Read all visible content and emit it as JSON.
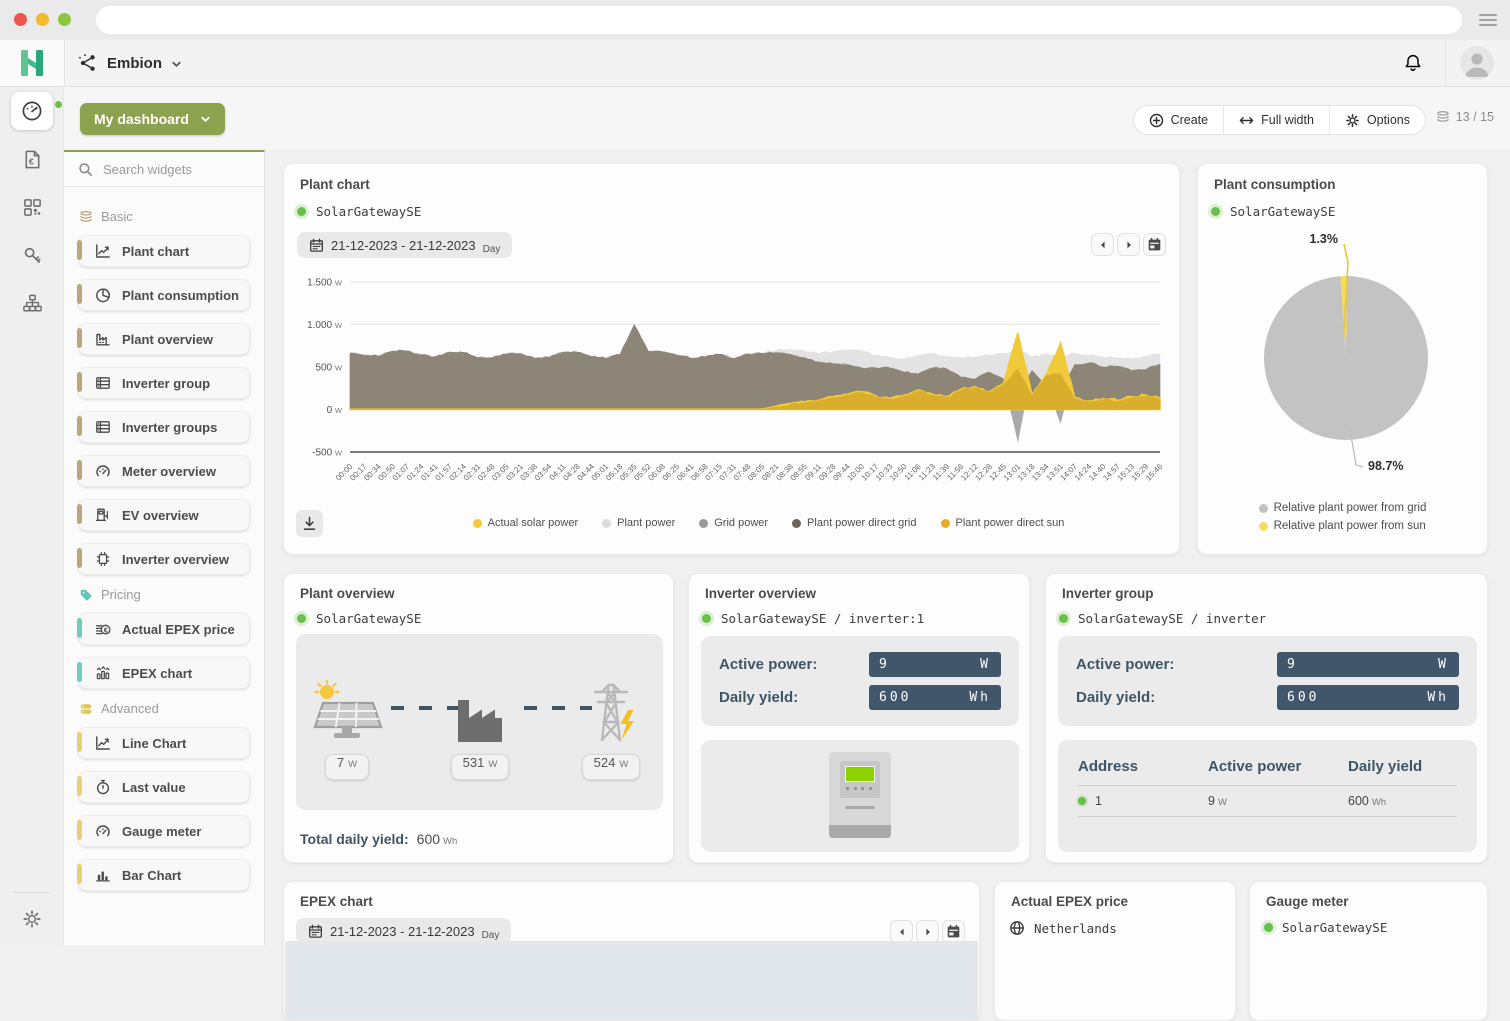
{
  "colors": {
    "accent_green": "#8ca24f",
    "status_green": "#67c04a",
    "slate": "#3e5566",
    "value_box": "#42566b"
  },
  "header": {
    "logo_letter": "H",
    "org_name": "Embion"
  },
  "nav_rail": {
    "items": [
      {
        "name": "dashboard",
        "icon": "speedometer",
        "active": true
      },
      {
        "name": "billing",
        "icon": "invoice",
        "active": false
      },
      {
        "name": "widgets",
        "icon": "apps-grid",
        "active": false
      },
      {
        "name": "access-keys",
        "icon": "key",
        "active": false
      },
      {
        "name": "organization",
        "icon": "sitemap",
        "active": false
      }
    ],
    "bottom": {
      "name": "settings",
      "icon": "gear"
    }
  },
  "toolbar": {
    "dashboard_button": "My dashboard",
    "create": "Create",
    "full_width": "Full width",
    "options": "Options",
    "counter": "13 / 15"
  },
  "sidebar": {
    "search_placeholder": "Search widgets",
    "sections": [
      {
        "label": "Basic",
        "icon": "layers",
        "accent": "#b9a77e",
        "icon_color": "#b9a77e",
        "items": [
          {
            "label": "Plant chart",
            "icon": "line-chart"
          },
          {
            "label": "Plant consumption",
            "icon": "pie-chart"
          },
          {
            "label": "Plant overview",
            "icon": "factory"
          },
          {
            "label": "Inverter group",
            "icon": "table-list"
          },
          {
            "label": "Inverter groups",
            "icon": "table-list"
          },
          {
            "label": "Meter overview",
            "icon": "gauge"
          },
          {
            "label": "EV overview",
            "icon": "ev-charger"
          },
          {
            "label": "Inverter overview",
            "icon": "chip"
          }
        ]
      },
      {
        "label": "Pricing",
        "icon": "tag",
        "accent": "#6fcdbd",
        "icon_color": "#5fc9b6",
        "items": [
          {
            "label": "Actual EPEX price",
            "icon": "coins"
          },
          {
            "label": "EPEX chart",
            "icon": "epex-bars"
          }
        ]
      },
      {
        "label": "Advanced",
        "icon": "database",
        "accent": "#e8d175",
        "icon_color": "#e0c554",
        "items": [
          {
            "label": "Line Chart",
            "icon": "line-chart"
          },
          {
            "label": "Last value",
            "icon": "stopwatch"
          },
          {
            "label": "Gauge meter",
            "icon": "gauge"
          },
          {
            "label": "Bar Chart",
            "icon": "bar-chart"
          }
        ]
      }
    ]
  },
  "widgets": {
    "plant_chart": {
      "title": "Plant chart",
      "device": "SolarGatewaySE",
      "date_range": "21-12-2023 - 21-12-2023",
      "date_granularity": "Day",
      "legend": [
        {
          "label": "Actual solar power",
          "color": "#f0ca39"
        },
        {
          "label": "Plant power",
          "color": "#dcdcdc"
        },
        {
          "label": "Grid power",
          "color": "#9a9a9a"
        },
        {
          "label": "Plant power direct grid",
          "color": "#6c6452"
        },
        {
          "label": "Plant power direct sun",
          "color": "#e5ad25"
        }
      ]
    },
    "plant_consumption": {
      "title": "Plant consumption",
      "device": "SolarGatewaySE",
      "slice_labels": {
        "sun": "1.3%",
        "grid": "98.7%"
      },
      "legend": [
        {
          "label": "Relative plant power from grid",
          "color": "#c3c3c3"
        },
        {
          "label": "Relative plant power from sun",
          "color": "#f4dd5b"
        }
      ]
    },
    "plant_overview": {
      "title": "Plant overview",
      "device": "SolarGatewaySE",
      "nodes": [
        {
          "icon": "solar-panel",
          "value": "7",
          "unit": "W"
        },
        {
          "icon": "factory-building",
          "value": "531",
          "unit": "W"
        },
        {
          "icon": "power-tower",
          "value": "524",
          "unit": "W"
        }
      ],
      "total_label": "Total daily yield:",
      "total_value": "600",
      "total_unit": "Wh"
    },
    "inverter_overview": {
      "title": "Inverter overview",
      "device": "SolarGatewaySE / inverter:1",
      "rows": [
        {
          "label": "Active power:",
          "value": "9",
          "unit": "W"
        },
        {
          "label": "Daily yield:",
          "value": "600",
          "unit": "Wh"
        }
      ]
    },
    "inverter_group": {
      "title": "Inverter group",
      "device": "SolarGatewaySE / inverter",
      "rows": [
        {
          "label": "Active power:",
          "value": "9",
          "unit": "W"
        },
        {
          "label": "Daily yield:",
          "value": "600",
          "unit": "Wh"
        }
      ],
      "table": {
        "headers": [
          "Address",
          "Active power",
          "Daily yield"
        ],
        "rows": [
          {
            "address": "1",
            "active_power": "9",
            "active_power_unit": "W",
            "daily_yield": "600",
            "daily_yield_unit": "Wh"
          }
        ]
      }
    },
    "epex_chart": {
      "title": "EPEX chart",
      "date_range": "21-12-2023 - 21-12-2023",
      "date_granularity": "Day"
    },
    "actual_epex_price": {
      "title": "Actual EPEX price",
      "region": "Netherlands"
    },
    "gauge_meter": {
      "title": "Gauge meter",
      "device": "SolarGatewaySE"
    }
  },
  "chart_data": [
    {
      "type": "area",
      "title": "Plant chart",
      "ylabel": "W",
      "unit": "W",
      "ylim": [
        -500,
        1500
      ],
      "grid": true,
      "legend_position": "bottom",
      "yticks": [
        {
          "label": "1.500",
          "value": 1500
        },
        {
          "label": "1.000",
          "value": 1000
        },
        {
          "label": "500",
          "value": 500
        },
        {
          "label": "0",
          "value": 0
        },
        {
          "label": "-500",
          "value": -500
        }
      ],
      "x": [
        "00:00",
        "00:17",
        "00:34",
        "00:50",
        "01:07",
        "01:24",
        "01:41",
        "01:57",
        "02:14",
        "02:31",
        "02:48",
        "03:05",
        "03:21",
        "03:38",
        "03:54",
        "04:11",
        "04:28",
        "04:44",
        "05:01",
        "05:18",
        "05:35",
        "05:52",
        "06:08",
        "06:25",
        "06:41",
        "06:58",
        "07:15",
        "07:31",
        "07:48",
        "08:05",
        "08:21",
        "08:38",
        "08:55",
        "09:11",
        "09:28",
        "09:44",
        "10:00",
        "10:17",
        "10:33",
        "10:50",
        "11:06",
        "11:23",
        "11:39",
        "11:56",
        "12:12",
        "12:28",
        "12:45",
        "13:01",
        "13:18",
        "13:34",
        "13:51",
        "14:07",
        "14:24",
        "14:40",
        "14:57",
        "15:13",
        "15:29",
        "15:46"
      ],
      "series": [
        {
          "name": "Plant power",
          "color": "#e3e3e3",
          "values": [
            665,
            640,
            630,
            688,
            690,
            645,
            622,
            676,
            672,
            612,
            610,
            652,
            660,
            604,
            614,
            674,
            676,
            622,
            604,
            650,
            1000,
            686,
            680,
            640,
            604,
            620,
            650,
            600,
            655,
            660,
            700,
            710,
            690,
            660,
            680,
            700,
            690,
            640,
            610,
            600,
            640,
            660,
            620,
            610,
            620,
            640,
            660,
            700,
            620,
            660,
            620,
            660,
            640,
            620,
            610,
            600,
            630,
            655
          ]
        },
        {
          "name": "Grid power",
          "color": "#a9a9a9",
          "values": [
            665,
            640,
            630,
            688,
            690,
            645,
            622,
            676,
            672,
            612,
            610,
            652,
            660,
            604,
            614,
            674,
            676,
            622,
            604,
            650,
            1000,
            686,
            680,
            640,
            604,
            620,
            650,
            600,
            655,
            660,
            670,
            650,
            610,
            560,
            540,
            530,
            490,
            490,
            490,
            440,
            420,
            490,
            480,
            380,
            360,
            440,
            360,
            -380,
            460,
            260,
            -160,
            530,
            550,
            500,
            510,
            460,
            470,
            535
          ]
        },
        {
          "name": "Plant power direct grid",
          "color": "#8d8577",
          "values": [
            665,
            640,
            630,
            688,
            690,
            645,
            622,
            676,
            672,
            612,
            610,
            652,
            660,
            604,
            614,
            674,
            676,
            622,
            604,
            650,
            1000,
            686,
            680,
            640,
            604,
            620,
            650,
            600,
            655,
            660,
            670,
            650,
            610,
            560,
            540,
            530,
            490,
            490,
            490,
            440,
            420,
            490,
            480,
            380,
            360,
            440,
            360,
            220,
            460,
            260,
            200,
            530,
            550,
            500,
            510,
            460,
            470,
            535
          ]
        },
        {
          "name": "Actual solar power",
          "color": "#f0ca39",
          "values": [
            4,
            4,
            4,
            4,
            4,
            4,
            4,
            4,
            4,
            4,
            4,
            4,
            4,
            4,
            4,
            4,
            4,
            4,
            4,
            4,
            4,
            4,
            4,
            4,
            4,
            4,
            4,
            4,
            4,
            4,
            40,
            70,
            90,
            110,
            150,
            180,
            210,
            160,
            130,
            170,
            230,
            180,
            150,
            240,
            270,
            210,
            310,
            900,
            170,
            410,
            780,
            140,
            100,
            130,
            110,
            150,
            170,
            130
          ]
        },
        {
          "name": "Plant power direct sun",
          "color": "#d9ae2c",
          "values": [
            0,
            0,
            0,
            0,
            0,
            0,
            0,
            0,
            0,
            0,
            0,
            0,
            0,
            0,
            0,
            0,
            0,
            0,
            0,
            0,
            0,
            0,
            0,
            0,
            0,
            0,
            0,
            0,
            0,
            0,
            30,
            60,
            80,
            100,
            140,
            170,
            200,
            150,
            120,
            160,
            220,
            170,
            140,
            230,
            260,
            200,
            300,
            480,
            160,
            400,
            420,
            130,
            90,
            120,
            100,
            140,
            160,
            120
          ]
        }
      ]
    },
    {
      "type": "pie",
      "title": "Plant consumption",
      "labels": [
        "Relative plant power from grid",
        "Relative plant power from sun"
      ],
      "values": [
        98.7,
        1.3
      ],
      "colors": [
        "#c3c3c3",
        "#f4dd5b"
      ],
      "start_angle_deg": -4
    }
  ]
}
